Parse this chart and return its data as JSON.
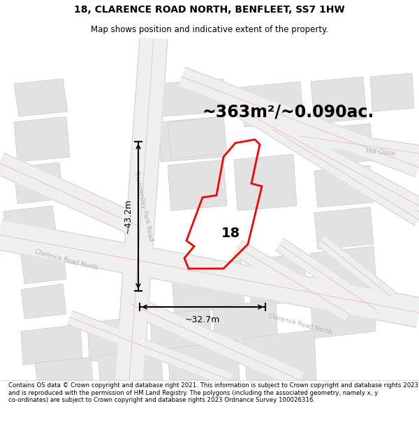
{
  "title": "18, CLARENCE ROAD NORTH, BENFLEET, SS7 1HW",
  "subtitle": "Map shows position and indicative extent of the property.",
  "area_text": "~363m²/~0.090ac.",
  "label_18": "18",
  "dim_vertical": "~43.2m",
  "dim_horizontal": "~32.7m",
  "footer": "Contains OS data © Crown copyright and database right 2021. This information is subject to Crown copyright and database rights 2023 and is reproduced with the permission of HM Land Registry. The polygons (including the associated geometry, namely x, y co-ordinates) are subject to Crown copyright and database rights 2023 Ordnance Survey 100026316.",
  "bg_color": "#f7f7f7",
  "block_color": "#e2e2e2",
  "block_edge": "#cccccc",
  "road_fill": "#f0f0f0",
  "road_edge": "#e8c8c8",
  "property_color": "#ff0000",
  "property_fill": "none",
  "title_fontsize": 10,
  "subtitle_fontsize": 8.5,
  "area_fontsize": 17,
  "dim_fontsize": 9,
  "label_fontsize": 14,
  "footer_fontsize": 6.2,
  "road_label_color": "#b0b0b0"
}
